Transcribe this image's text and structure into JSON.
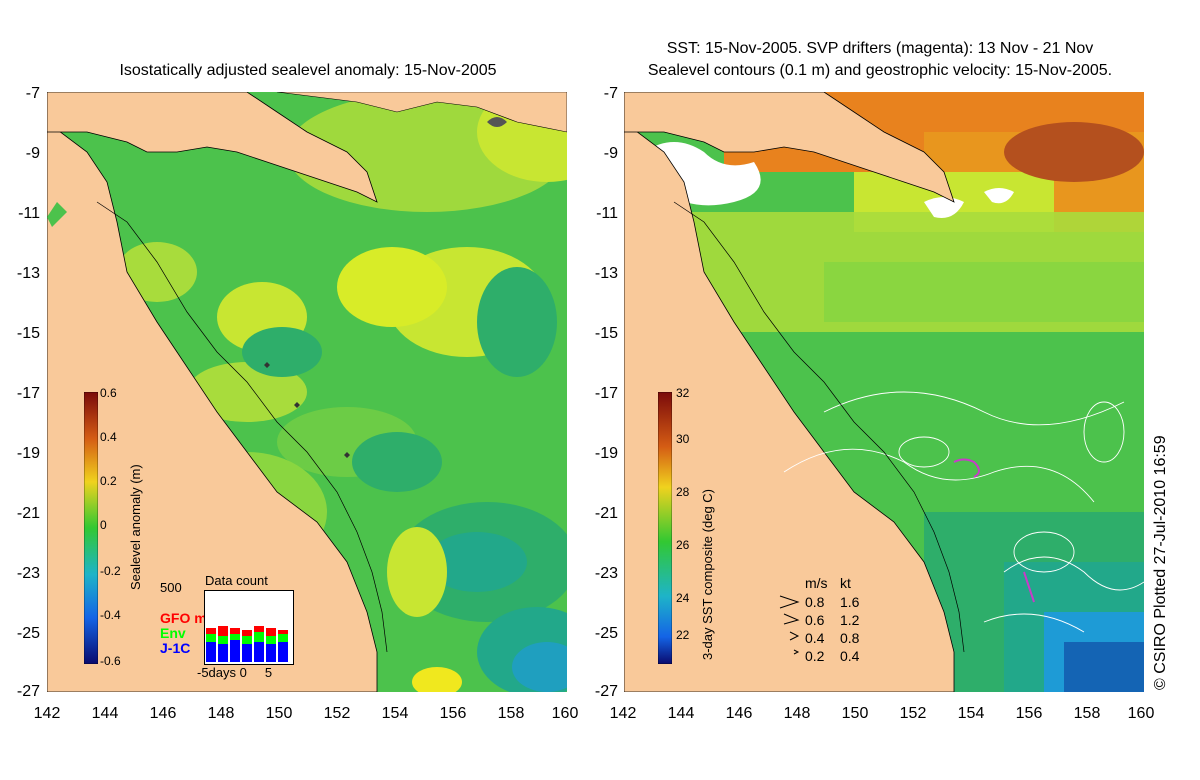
{
  "left_panel": {
    "title": "Isostatically adjusted sealevel anomaly: 15-Nov-2005",
    "colorbar": {
      "title": "Sealevel anomaly (m)",
      "ticks": [
        "0.6",
        "0.4",
        "0.2",
        "0",
        "-0.2",
        "-0.4",
        "-0.6"
      ]
    },
    "data_count": {
      "title": "Data count",
      "max_label": "500",
      "x_axis": "-5days 0     5",
      "series": [
        {
          "name": "GFO mm",
          "color": "#ff0000"
        },
        {
          "name": "Env",
          "color": "#00ff00"
        },
        {
          "name": "J-1C",
          "color": "#0000ff"
        }
      ]
    }
  },
  "right_panel": {
    "title_line1": "SST: 15-Nov-2005. SVP drifters (magenta): 13 Nov - 21 Nov",
    "title_line2": "Sealevel contours (0.1 m) and geostrophic velocity: 15-Nov-2005.",
    "colorbar": {
      "title": "3-day SST composite (deg C)",
      "ticks": [
        "32",
        "30",
        "28",
        "26",
        "24",
        "22"
      ]
    },
    "speed_legend": {
      "header_ms": "m/s",
      "header_kt": "kt",
      "rows": [
        {
          "ms": "0.8",
          "kt": "1.6"
        },
        {
          "ms": "0.6",
          "kt": "1.2"
        },
        {
          "ms": "0.4",
          "kt": "0.8"
        },
        {
          "ms": "0.2",
          "kt": "0.4"
        }
      ]
    }
  },
  "axes": {
    "y_ticks": [
      "-7",
      "-9",
      "-11",
      "-13",
      "-15",
      "-17",
      "-19",
      "-21",
      "-23",
      "-25",
      "-27"
    ],
    "x_ticks": [
      "142",
      "144",
      "146",
      "148",
      "150",
      "152",
      "154",
      "156",
      "158",
      "160"
    ]
  },
  "stamp": "© CSIRO Plotted 27-Jul-2010 16:59",
  "colors": {
    "land": "#f9c99a",
    "ocean_green": "#4cc24c",
    "anomaly_yellow": "#c8e632",
    "cold_blue": "#1e9bd6",
    "warm_orange": "#e8821e"
  }
}
